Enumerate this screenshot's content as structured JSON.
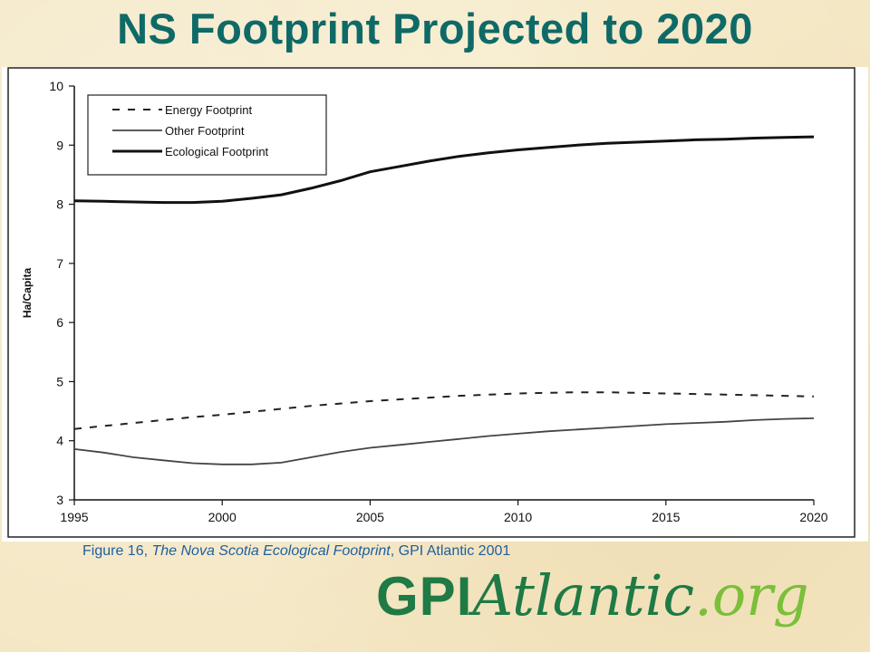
{
  "title": "NS Footprint Projected to 2020",
  "caption": {
    "prefix": "Figure 16, ",
    "italic": "The Nova Scotia Ecological Footprint",
    "suffix": ", GPI Atlantic 2001"
  },
  "logo": {
    "gpi": "GPI",
    "atlantic": "Atlantic",
    "org": ".org"
  },
  "colors": {
    "title": "#0f6a67",
    "caption": "#1e5fa0",
    "logo_dark": "#1f7a45",
    "logo_light": "#7bbf3a"
  },
  "chart_data": {
    "type": "line",
    "title": "",
    "xlabel": "",
    "ylabel": "Ha/Capita",
    "xlim": [
      1995,
      2020
    ],
    "ylim": [
      3,
      10
    ],
    "xticks": [
      1995,
      2000,
      2005,
      2010,
      2015,
      2020
    ],
    "yticks": [
      3,
      4,
      5,
      6,
      7,
      8,
      9,
      10
    ],
    "grid": false,
    "legend_position": "top-left",
    "x": [
      1995,
      1996,
      1997,
      1998,
      1999,
      2000,
      2001,
      2002,
      2003,
      2004,
      2005,
      2006,
      2007,
      2008,
      2009,
      2010,
      2011,
      2012,
      2013,
      2014,
      2015,
      2016,
      2017,
      2018,
      2019,
      2020
    ],
    "series": [
      {
        "name": "Energy Footprint",
        "style": "dashed",
        "values": [
          4.2,
          4.25,
          4.3,
          4.35,
          4.4,
          4.44,
          4.49,
          4.54,
          4.59,
          4.63,
          4.67,
          4.7,
          4.73,
          4.76,
          4.78,
          4.8,
          4.81,
          4.82,
          4.82,
          4.81,
          4.8,
          4.79,
          4.78,
          4.77,
          4.76,
          4.75
        ]
      },
      {
        "name": "Other Footprint",
        "style": "thin",
        "values": [
          3.86,
          3.8,
          3.72,
          3.67,
          3.62,
          3.6,
          3.6,
          3.63,
          3.72,
          3.81,
          3.88,
          3.93,
          3.98,
          4.03,
          4.08,
          4.12,
          4.16,
          4.19,
          4.22,
          4.25,
          4.28,
          4.3,
          4.32,
          4.35,
          4.37,
          4.38
        ]
      },
      {
        "name": "Ecological Footprint",
        "style": "thick",
        "values": [
          8.06,
          8.05,
          8.04,
          8.03,
          8.03,
          8.05,
          8.1,
          8.16,
          8.27,
          8.4,
          8.55,
          8.64,
          8.73,
          8.81,
          8.87,
          8.92,
          8.96,
          9.0,
          9.03,
          9.05,
          9.07,
          9.09,
          9.1,
          9.12,
          9.13,
          9.14
        ]
      }
    ]
  }
}
